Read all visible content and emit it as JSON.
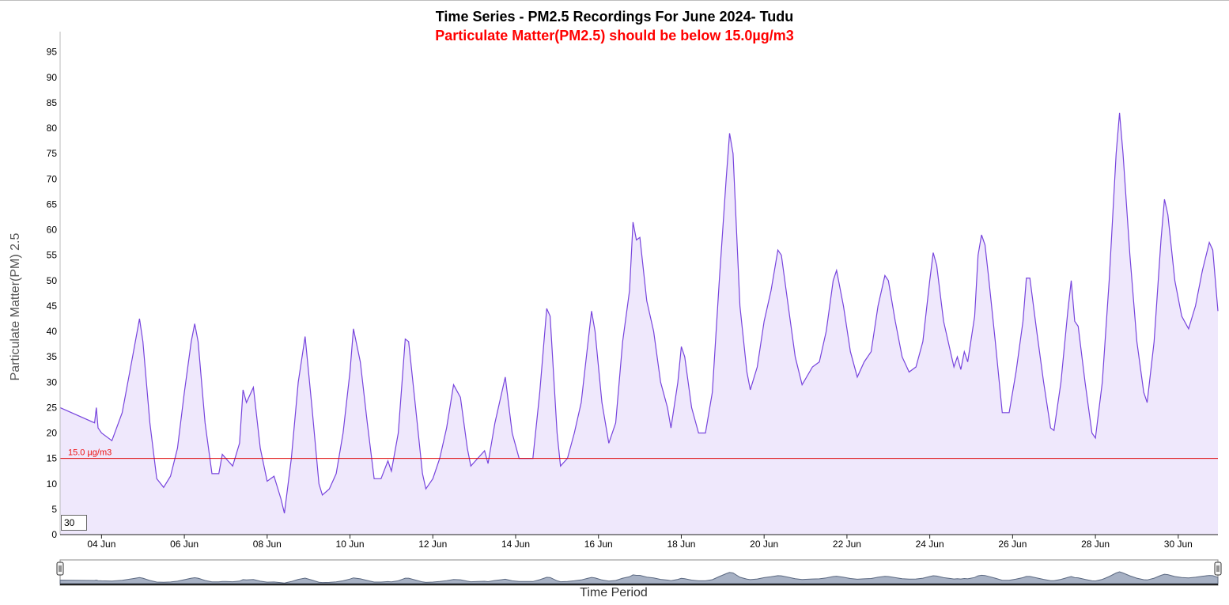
{
  "chart_data": {
    "type": "area",
    "title": "Time Series - PM2.5 Recordings For June 2024- Tudu",
    "subtitle": "Particulate Matter(PM2.5) should be below 15.0µg/m3",
    "ylabel": "Particulate Matter(PM) 2.5",
    "xlabel": "Time Period",
    "ylim": [
      0,
      99
    ],
    "yticks": [
      0,
      5,
      10,
      15,
      20,
      25,
      30,
      35,
      40,
      45,
      50,
      55,
      60,
      65,
      70,
      75,
      80,
      85,
      90,
      95
    ],
    "xlim": [
      "2024-06-03T00:00",
      "2024-06-30T23:00"
    ],
    "xticks": [
      {
        "date": "2024-06-04",
        "label": "04 Jun"
      },
      {
        "date": "2024-06-06",
        "label": "06 Jun"
      },
      {
        "date": "2024-06-08",
        "label": "08 Jun"
      },
      {
        "date": "2024-06-10",
        "label": "10 Jun"
      },
      {
        "date": "2024-06-12",
        "label": "12 Jun"
      },
      {
        "date": "2024-06-14",
        "label": "14 Jun"
      },
      {
        "date": "2024-06-16",
        "label": "16 Jun"
      },
      {
        "date": "2024-06-18",
        "label": "18 Jun"
      },
      {
        "date": "2024-06-20",
        "label": "20 Jun"
      },
      {
        "date": "2024-06-22",
        "label": "22 Jun"
      },
      {
        "date": "2024-06-24",
        "label": "24 Jun"
      },
      {
        "date": "2024-06-26",
        "label": "26 Jun"
      },
      {
        "date": "2024-06-28",
        "label": "28 Jun"
      },
      {
        "date": "2024-06-30",
        "label": "30 Jun"
      }
    ],
    "reference_line": {
      "value": 15.0,
      "label": "15.0 µg/m3",
      "color": "#dd0000"
    },
    "line_color": "#7744dd",
    "fill_color": "#efe8fc",
    "rolling_period": "30",
    "series": [
      {
        "points": [
          [
            "2024-06-03T00:00",
            25
          ],
          [
            "2024-06-03T20:00",
            22
          ],
          [
            "2024-06-03T21:00",
            25
          ],
          [
            "2024-06-03T22:00",
            21
          ],
          [
            "2024-06-04T00:00",
            20
          ],
          [
            "2024-06-04T06:00",
            18.5
          ],
          [
            "2024-06-04T12:00",
            24
          ],
          [
            "2024-06-04T18:00",
            35
          ],
          [
            "2024-06-04T22:00",
            42.5
          ],
          [
            "2024-06-05T00:00",
            38
          ],
          [
            "2024-06-05T04:00",
            22
          ],
          [
            "2024-06-05T08:00",
            11
          ],
          [
            "2024-06-05T12:00",
            9.3
          ],
          [
            "2024-06-05T16:00",
            11.5
          ],
          [
            "2024-06-05T20:00",
            17
          ],
          [
            "2024-06-06T00:00",
            28
          ],
          [
            "2024-06-06T04:00",
            38
          ],
          [
            "2024-06-06T06:00",
            41.5
          ],
          [
            "2024-06-06T08:00",
            38
          ],
          [
            "2024-06-06T12:00",
            22
          ],
          [
            "2024-06-06T16:00",
            12
          ],
          [
            "2024-06-06T20:00",
            12
          ],
          [
            "2024-06-06T22:00",
            15.8
          ],
          [
            "2024-06-07T00:00",
            15
          ],
          [
            "2024-06-07T04:00",
            13.5
          ],
          [
            "2024-06-07T08:00",
            18
          ],
          [
            "2024-06-07T10:00",
            28.5
          ],
          [
            "2024-06-07T12:00",
            26
          ],
          [
            "2024-06-07T16:00",
            29
          ],
          [
            "2024-06-07T20:00",
            17
          ],
          [
            "2024-06-08T00:00",
            10.5
          ],
          [
            "2024-06-08T04:00",
            11.5
          ],
          [
            "2024-06-08T08:00",
            7
          ],
          [
            "2024-06-08T10:00",
            4.2
          ],
          [
            "2024-06-08T14:00",
            15
          ],
          [
            "2024-06-08T18:00",
            30
          ],
          [
            "2024-06-08T22:00",
            39
          ],
          [
            "2024-06-09T02:00",
            25
          ],
          [
            "2024-06-09T06:00",
            10
          ],
          [
            "2024-06-09T08:00",
            7.8
          ],
          [
            "2024-06-09T12:00",
            9
          ],
          [
            "2024-06-09T16:00",
            12
          ],
          [
            "2024-06-09T20:00",
            20
          ],
          [
            "2024-06-10T00:00",
            32
          ],
          [
            "2024-06-10T02:00",
            40.5
          ],
          [
            "2024-06-10T06:00",
            34
          ],
          [
            "2024-06-10T10:00",
            22
          ],
          [
            "2024-06-10T14:00",
            11
          ],
          [
            "2024-06-10T18:00",
            11
          ],
          [
            "2024-06-10T22:00",
            14.5
          ],
          [
            "2024-06-11T00:00",
            12.5
          ],
          [
            "2024-06-11T04:00",
            20
          ],
          [
            "2024-06-11T08:00",
            38.5
          ],
          [
            "2024-06-11T10:00",
            38
          ],
          [
            "2024-06-11T14:00",
            25
          ],
          [
            "2024-06-11T18:00",
            12
          ],
          [
            "2024-06-11T20:00",
            9
          ],
          [
            "2024-06-12T00:00",
            11
          ],
          [
            "2024-06-12T04:00",
            15
          ],
          [
            "2024-06-12T08:00",
            21
          ],
          [
            "2024-06-12T12:00",
            29.5
          ],
          [
            "2024-06-12T16:00",
            27
          ],
          [
            "2024-06-12T20:00",
            17
          ],
          [
            "2024-06-12T22:00",
            13.5
          ],
          [
            "2024-06-13T02:00",
            15
          ],
          [
            "2024-06-13T06:00",
            16.5
          ],
          [
            "2024-06-13T08:00",
            14
          ],
          [
            "2024-06-13T12:00",
            22
          ],
          [
            "2024-06-13T16:00",
            28
          ],
          [
            "2024-06-13T18:00",
            31
          ],
          [
            "2024-06-13T22:00",
            20
          ],
          [
            "2024-06-14T02:00",
            15
          ],
          [
            "2024-06-14T06:00",
            15
          ],
          [
            "2024-06-14T10:00",
            15
          ],
          [
            "2024-06-14T14:00",
            28
          ],
          [
            "2024-06-14T18:00",
            44.5
          ],
          [
            "2024-06-14T20:00",
            43
          ],
          [
            "2024-06-15T00:00",
            20
          ],
          [
            "2024-06-15T02:00",
            13.5
          ],
          [
            "2024-06-15T06:00",
            15
          ],
          [
            "2024-06-15T10:00",
            20
          ],
          [
            "2024-06-15T14:00",
            26
          ],
          [
            "2024-06-15T18:00",
            38
          ],
          [
            "2024-06-15T20:00",
            44
          ],
          [
            "2024-06-15T22:00",
            40
          ],
          [
            "2024-06-16T02:00",
            26
          ],
          [
            "2024-06-16T06:00",
            18
          ],
          [
            "2024-06-16T10:00",
            22
          ],
          [
            "2024-06-16T14:00",
            38
          ],
          [
            "2024-06-16T18:00",
            48
          ],
          [
            "2024-06-16T20:00",
            61.5
          ],
          [
            "2024-06-16T22:00",
            58
          ],
          [
            "2024-06-17T00:00",
            58.5
          ],
          [
            "2024-06-17T04:00",
            46
          ],
          [
            "2024-06-17T08:00",
            40
          ],
          [
            "2024-06-17T12:00",
            30
          ],
          [
            "2024-06-17T16:00",
            25
          ],
          [
            "2024-06-17T18:00",
            21
          ],
          [
            "2024-06-17T22:00",
            30
          ],
          [
            "2024-06-18T00:00",
            37
          ],
          [
            "2024-06-18T02:00",
            35
          ],
          [
            "2024-06-18T06:00",
            25
          ],
          [
            "2024-06-18T10:00",
            20
          ],
          [
            "2024-06-18T14:00",
            20
          ],
          [
            "2024-06-18T18:00",
            28
          ],
          [
            "2024-06-18T22:00",
            50
          ],
          [
            "2024-06-19T02:00",
            70
          ],
          [
            "2024-06-19T04:00",
            79
          ],
          [
            "2024-06-19T06:00",
            75
          ],
          [
            "2024-06-19T10:00",
            45
          ],
          [
            "2024-06-19T14:00",
            32
          ],
          [
            "2024-06-19T16:00",
            28.5
          ],
          [
            "2024-06-19T20:00",
            33
          ],
          [
            "2024-06-20T00:00",
            42
          ],
          [
            "2024-06-20T04:00",
            48
          ],
          [
            "2024-06-20T08:00",
            56
          ],
          [
            "2024-06-20T10:00",
            55
          ],
          [
            "2024-06-20T14:00",
            45
          ],
          [
            "2024-06-20T18:00",
            35
          ],
          [
            "2024-06-20T22:00",
            29.5
          ],
          [
            "2024-06-21T04:00",
            33
          ],
          [
            "2024-06-21T08:00",
            34
          ],
          [
            "2024-06-21T12:00",
            40
          ],
          [
            "2024-06-21T16:00",
            50
          ],
          [
            "2024-06-21T18:00",
            52
          ],
          [
            "2024-06-21T22:00",
            45
          ],
          [
            "2024-06-22T02:00",
            36
          ],
          [
            "2024-06-22T06:00",
            31
          ],
          [
            "2024-06-22T10:00",
            34
          ],
          [
            "2024-06-22T14:00",
            36
          ],
          [
            "2024-06-22T18:00",
            45
          ],
          [
            "2024-06-22T22:00",
            51
          ],
          [
            "2024-06-23T00:00",
            50
          ],
          [
            "2024-06-23T04:00",
            42
          ],
          [
            "2024-06-23T08:00",
            35
          ],
          [
            "2024-06-23T12:00",
            32
          ],
          [
            "2024-06-23T16:00",
            33
          ],
          [
            "2024-06-23T20:00",
            38
          ],
          [
            "2024-06-24T00:00",
            50
          ],
          [
            "2024-06-24T02:00",
            55.5
          ],
          [
            "2024-06-24T04:00",
            53
          ],
          [
            "2024-06-24T08:00",
            42
          ],
          [
            "2024-06-24T12:00",
            36
          ],
          [
            "2024-06-24T14:00",
            33
          ],
          [
            "2024-06-24T16:00",
            35
          ],
          [
            "2024-06-24T18:00",
            32.5
          ],
          [
            "2024-06-24T20:00",
            36
          ],
          [
            "2024-06-24T22:00",
            34
          ],
          [
            "2024-06-25T02:00",
            43
          ],
          [
            "2024-06-25T04:00",
            55
          ],
          [
            "2024-06-25T06:00",
            59
          ],
          [
            "2024-06-25T08:00",
            57
          ],
          [
            "2024-06-25T10:00",
            51
          ],
          [
            "2024-06-25T14:00",
            38
          ],
          [
            "2024-06-25T18:00",
            24
          ],
          [
            "2024-06-25T22:00",
            24
          ],
          [
            "2024-06-26T02:00",
            32
          ],
          [
            "2024-06-26T06:00",
            42
          ],
          [
            "2024-06-26T08:00",
            50.5
          ],
          [
            "2024-06-26T10:00",
            50.5
          ],
          [
            "2024-06-26T14:00",
            40
          ],
          [
            "2024-06-26T18:00",
            30
          ],
          [
            "2024-06-26T22:00",
            21
          ],
          [
            "2024-06-27T00:00",
            20.5
          ],
          [
            "2024-06-27T04:00",
            30
          ],
          [
            "2024-06-27T08:00",
            44
          ],
          [
            "2024-06-27T10:00",
            50
          ],
          [
            "2024-06-27T12:00",
            42
          ],
          [
            "2024-06-27T14:00",
            41
          ],
          [
            "2024-06-27T18:00",
            30
          ],
          [
            "2024-06-27T22:00",
            20
          ],
          [
            "2024-06-28T00:00",
            19
          ],
          [
            "2024-06-28T04:00",
            30
          ],
          [
            "2024-06-28T08:00",
            50
          ],
          [
            "2024-06-28T12:00",
            75
          ],
          [
            "2024-06-28T14:00",
            83
          ],
          [
            "2024-06-28T16:00",
            75
          ],
          [
            "2024-06-28T20:00",
            55
          ],
          [
            "2024-06-29T00:00",
            38
          ],
          [
            "2024-06-29T04:00",
            28
          ],
          [
            "2024-06-29T06:00",
            26
          ],
          [
            "2024-06-29T10:00",
            38
          ],
          [
            "2024-06-29T14:00",
            58
          ],
          [
            "2024-06-29T16:00",
            66
          ],
          [
            "2024-06-29T18:00",
            63
          ],
          [
            "2024-06-29T22:00",
            50
          ],
          [
            "2024-06-30T02:00",
            43
          ],
          [
            "2024-06-30T06:00",
            40.5
          ],
          [
            "2024-06-30T10:00",
            45
          ],
          [
            "2024-06-30T14:00",
            52
          ],
          [
            "2024-06-30T18:00",
            57.5
          ],
          [
            "2024-06-30T20:00",
            56
          ],
          [
            "2024-06-30T23:00",
            44
          ]
        ]
      }
    ]
  }
}
